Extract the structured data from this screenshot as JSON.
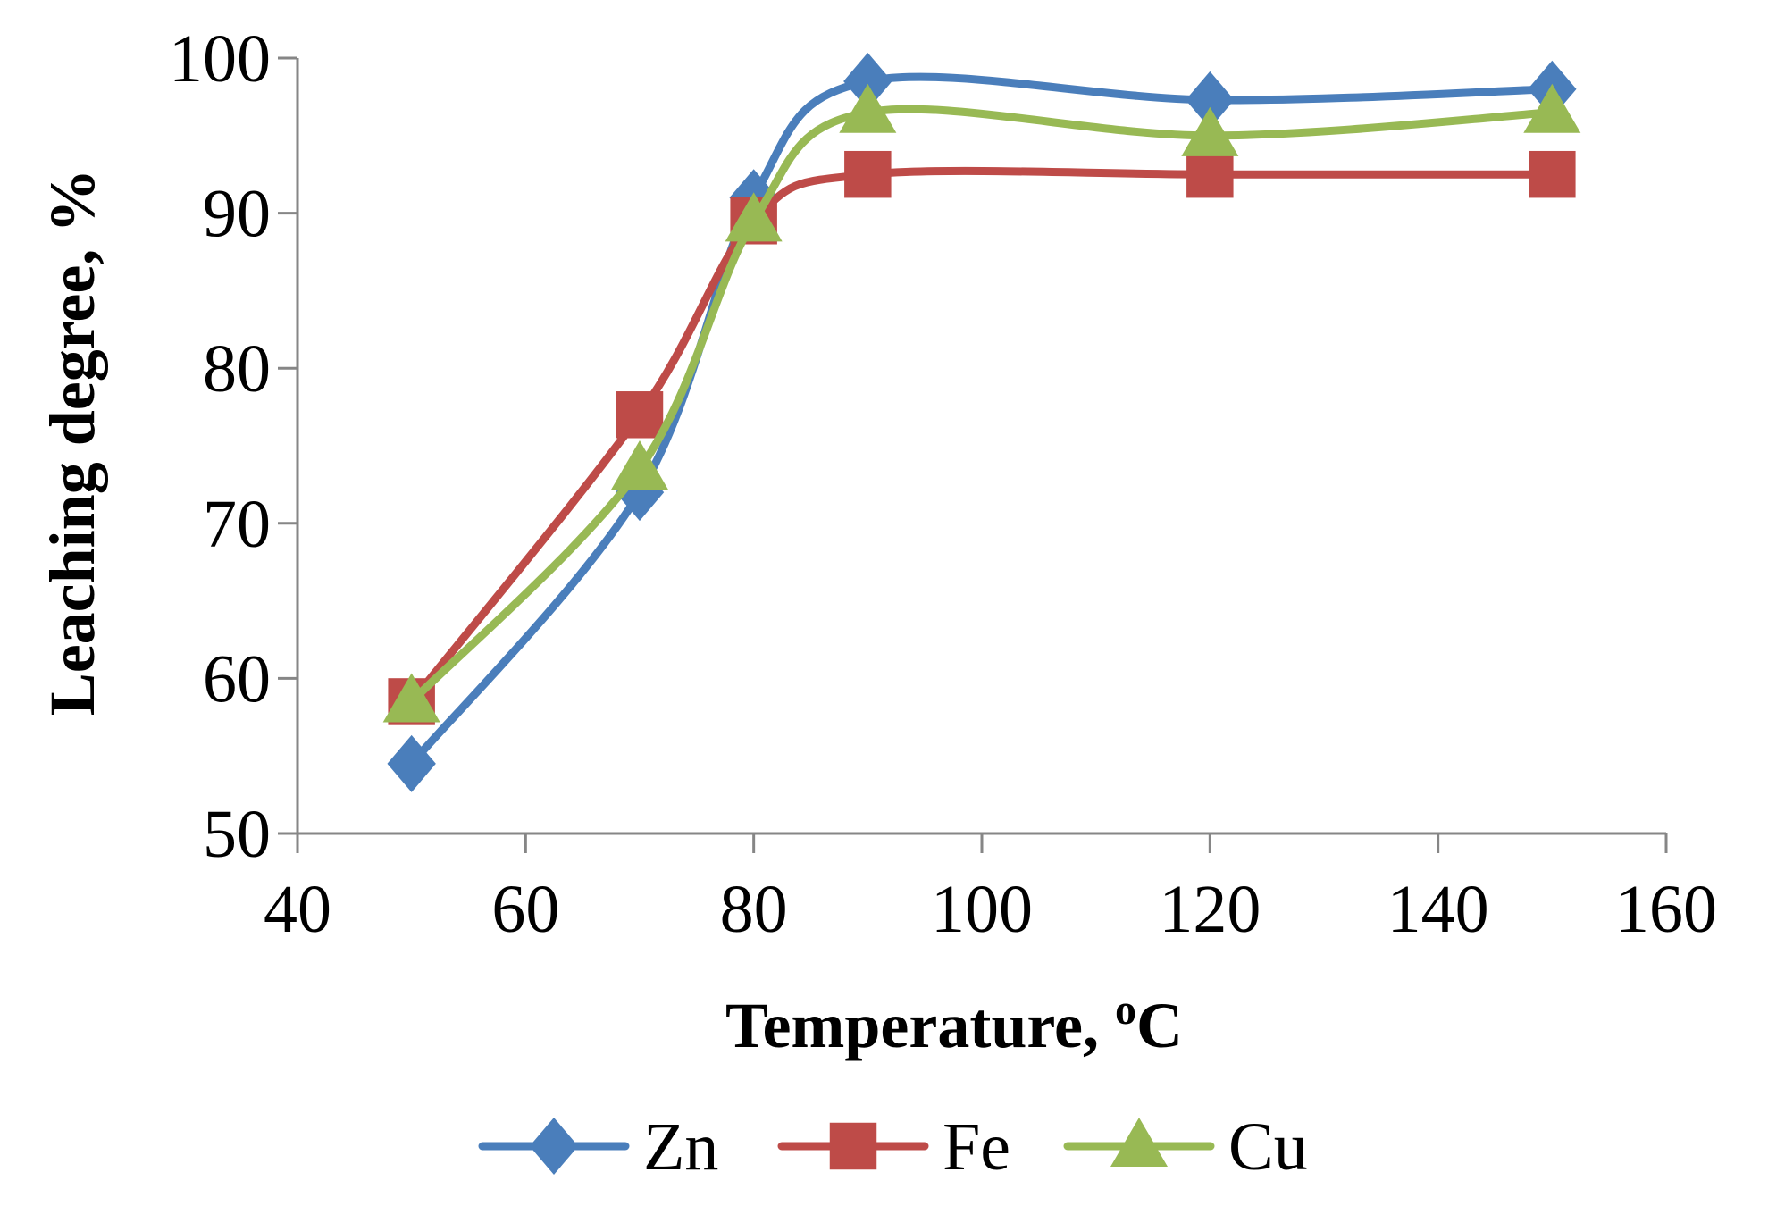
{
  "chart_data": {
    "type": "line",
    "title": "",
    "xlabel": "Temperature, ",
    "xlabel_superscript": "o",
    "xlabel_unit": "C",
    "ylabel": "Leaching degree, %",
    "xlim": [
      40,
      160
    ],
    "ylim": [
      50,
      100
    ],
    "x_ticks": [
      40,
      60,
      80,
      100,
      120,
      140,
      160
    ],
    "y_ticks": [
      50,
      60,
      70,
      80,
      90,
      100
    ],
    "x_tick_labels": [
      "40",
      "60",
      "80",
      "100",
      "120",
      "140",
      "160"
    ],
    "y_tick_labels": [
      "50",
      "60",
      "70",
      "80",
      "90",
      "100"
    ],
    "x": [
      50,
      70,
      80,
      90,
      120,
      150
    ],
    "series": [
      {
        "name": "Zn",
        "marker": "diamond",
        "color": "#4a7ebb",
        "values": [
          54.5,
          72.0,
          91.0,
          98.5,
          97.3,
          98.0
        ]
      },
      {
        "name": "Fe",
        "marker": "square",
        "color": "#be4b48",
        "values": [
          58.5,
          77.0,
          89.5,
          92.5,
          92.5,
          92.5
        ]
      },
      {
        "name": "Cu",
        "marker": "triangle",
        "color": "#98b954",
        "values": [
          58.5,
          73.5,
          89.5,
          96.5,
          95.0,
          96.5
        ]
      }
    ],
    "grid": false,
    "legend_position": "bottom"
  }
}
